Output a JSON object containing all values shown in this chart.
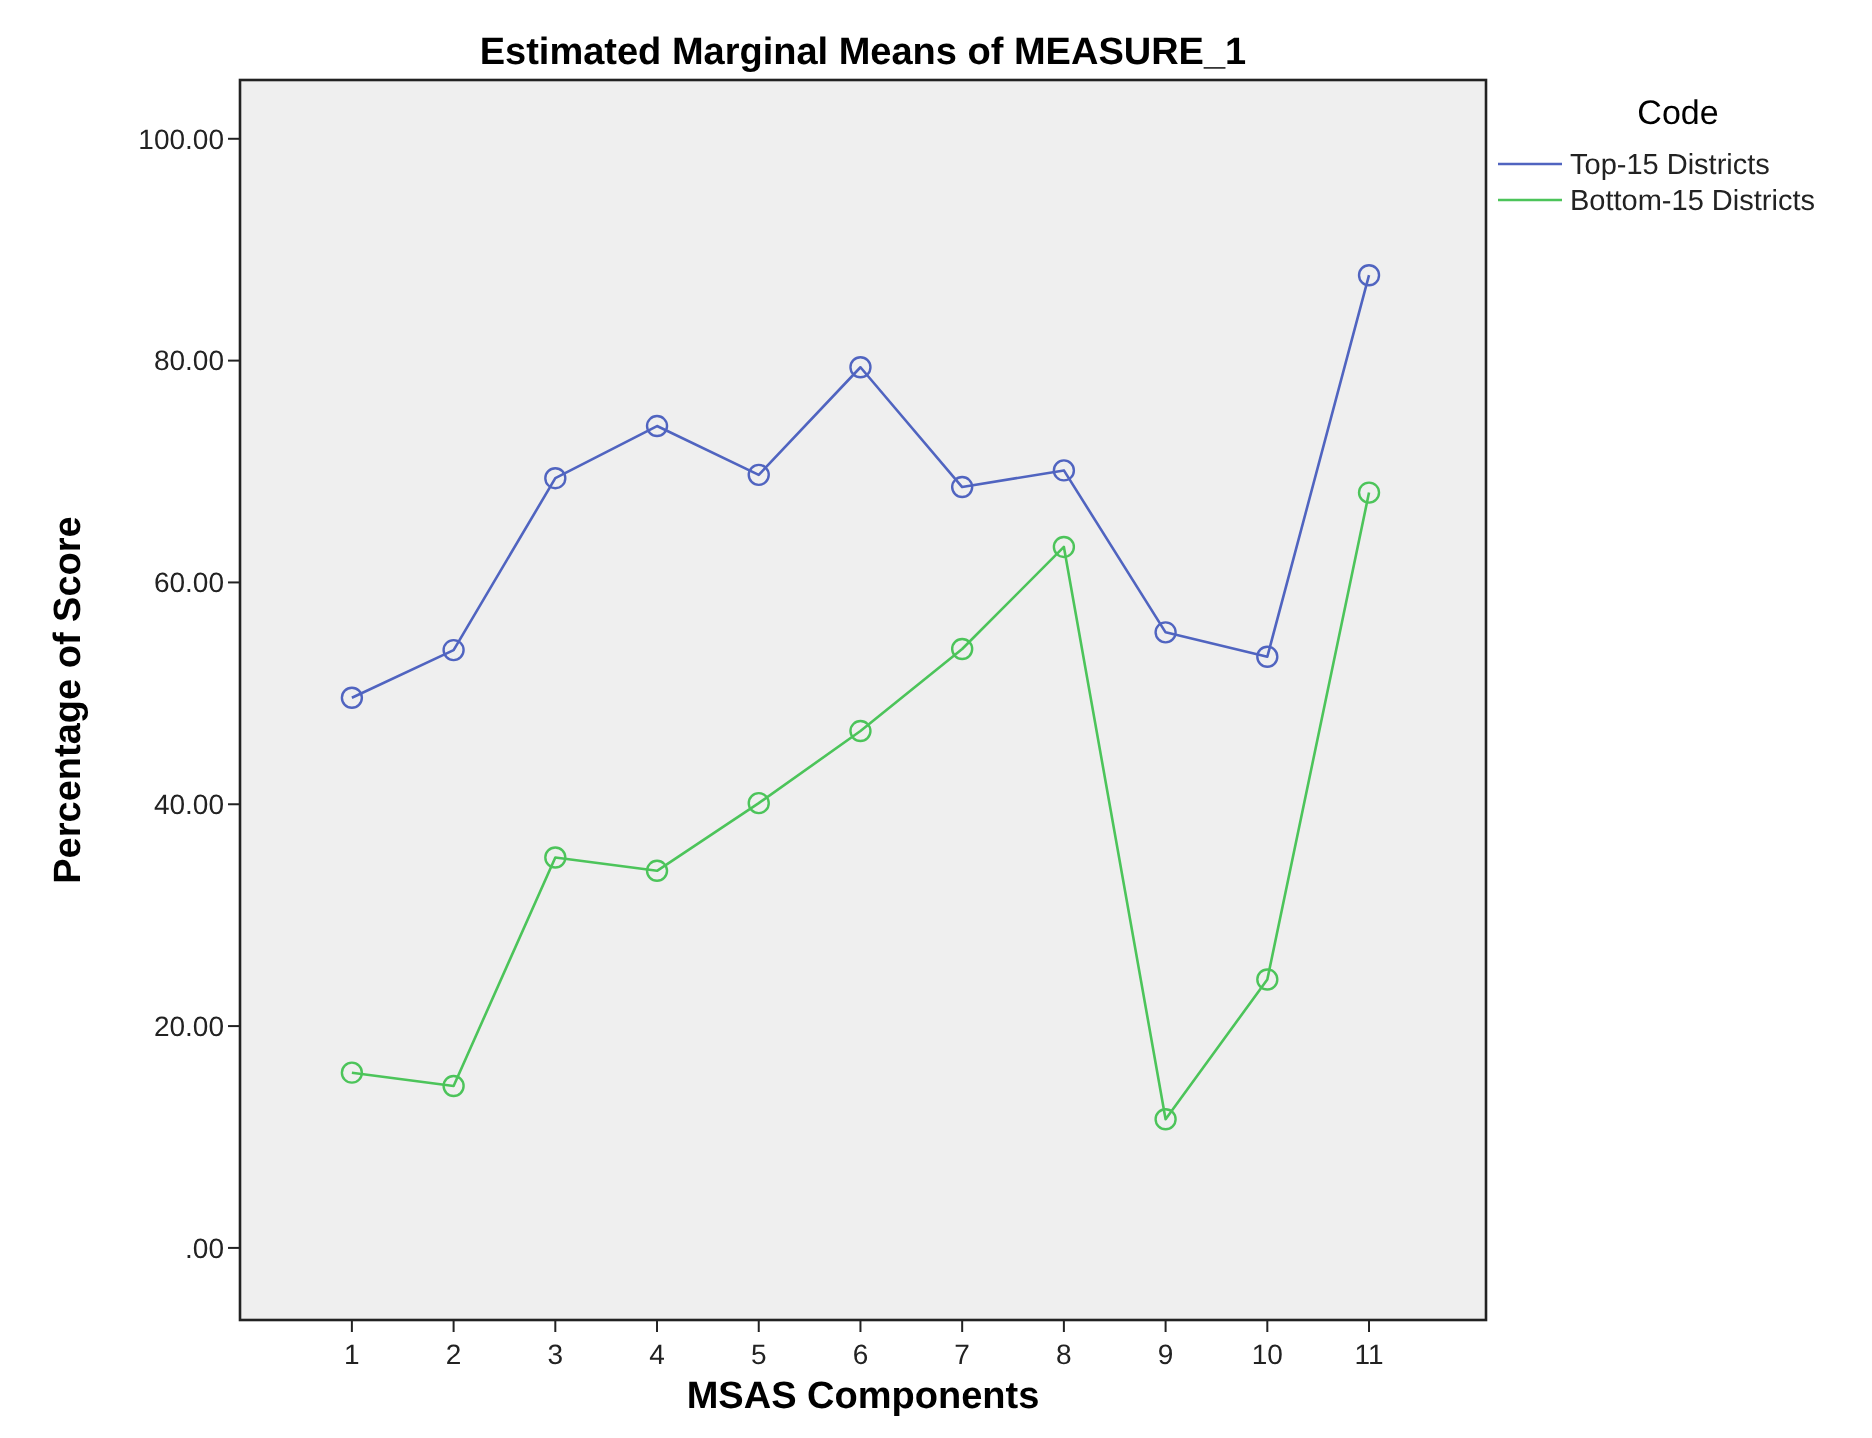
{
  "chart_data": {
    "type": "line",
    "title": "Estimated Marginal Means of MEASURE_1",
    "xlabel": "MSAS Components",
    "ylabel": "Percentage of Score",
    "legend_title": "Code",
    "legend": "top right",
    "marker": "circle",
    "line_style": "solid",
    "grid": false,
    "categories": [
      "1",
      "2",
      "3",
      "4",
      "5",
      "6",
      "7",
      "8",
      "9",
      "10",
      "11"
    ],
    "ylim": [
      -6.5,
      105.3
    ],
    "yticks": [
      {
        "value": 0,
        "label": ".00"
      },
      {
        "value": 20,
        "label": "20.00"
      },
      {
        "value": 40,
        "label": "40.00"
      },
      {
        "value": 60,
        "label": "60.00"
      },
      {
        "value": 80,
        "label": "80.00"
      },
      {
        "value": 100,
        "label": "100.00"
      }
    ],
    "series": [
      {
        "name": "Top-15 Districts",
        "color": "#5064c0",
        "values": [
          49.6,
          53.9,
          69.4,
          74.1,
          69.7,
          79.4,
          68.6,
          70.1,
          55.5,
          53.3,
          87.7
        ]
      },
      {
        "name": "Bottom-15 Districts",
        "color": "#4cc45a",
        "values": [
          15.8,
          14.6,
          35.2,
          34.0,
          40.1,
          46.6,
          54.0,
          63.2,
          11.6,
          24.2,
          68.1
        ]
      }
    ]
  }
}
